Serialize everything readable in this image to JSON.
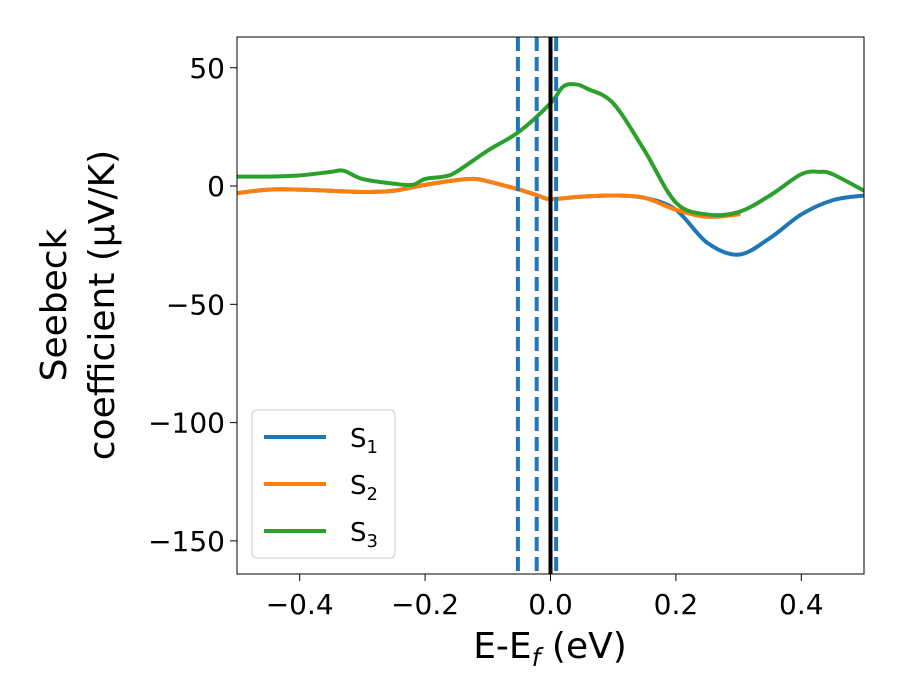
{
  "chart_data": {
    "type": "line",
    "xlabel": "E-E",
    "xlabel_sub": "f",
    "xlabel_unit": " (eV)",
    "ylabel_line1": "Seebeck",
    "ylabel_line2": "coefficient  (μV/K)",
    "xlim": [
      -0.5,
      0.5
    ],
    "ylim": [
      -164,
      63
    ],
    "xticks": [
      -0.4,
      -0.2,
      0.0,
      0.2,
      0.4
    ],
    "xtick_labels": [
      "−0.4",
      "−0.2",
      "0.0",
      "0.2",
      "0.4"
    ],
    "yticks": [
      50,
      0,
      -50,
      -100,
      -150
    ],
    "ytick_labels": [
      "50",
      "0",
      "−50",
      "−100",
      "−150"
    ],
    "legend_position": "lower-left",
    "series": [
      {
        "name": "S",
        "name_sub": "1",
        "color": "#1f77b4",
        "x": [
          -0.5,
          -0.45,
          -0.4,
          -0.35,
          -0.3,
          -0.25,
          -0.2,
          -0.15,
          -0.12,
          -0.1,
          -0.05,
          -0.02,
          0.0,
          0.05,
          0.1,
          0.15,
          0.2,
          0.25,
          0.3,
          0.35,
          0.4,
          0.45,
          0.5
        ],
        "y": [
          -3,
          -1.5,
          -1.5,
          -2,
          -2.5,
          -2,
          0.5,
          2.5,
          3,
          2,
          -1.5,
          -4,
          -5.5,
          -4.5,
          -4,
          -5,
          -10,
          -24,
          -29,
          -22,
          -12,
          -6,
          -4
        ]
      },
      {
        "name": "S",
        "name_sub": "2",
        "color": "#ff7f0e",
        "x": [
          -0.5,
          -0.45,
          -0.4,
          -0.35,
          -0.3,
          -0.25,
          -0.2,
          -0.15,
          -0.12,
          -0.1,
          -0.05,
          -0.02,
          0.0,
          0.05,
          0.1,
          0.15,
          0.2,
          0.25,
          0.3
        ],
        "y": [
          -3,
          -1.5,
          -1.5,
          -2,
          -2.5,
          -2,
          0.5,
          2.5,
          3,
          2,
          -1.5,
          -4,
          -5.5,
          -4.5,
          -4,
          -5,
          -10,
          -13,
          -12
        ]
      },
      {
        "name": "S",
        "name_sub": "3",
        "color": "#2ca02c",
        "x": [
          -0.5,
          -0.45,
          -0.4,
          -0.35,
          -0.33,
          -0.3,
          -0.25,
          -0.22,
          -0.2,
          -0.17,
          -0.15,
          -0.1,
          -0.05,
          0.0,
          0.02,
          0.04,
          0.06,
          0.1,
          0.15,
          0.2,
          0.25,
          0.3,
          0.35,
          0.4,
          0.43,
          0.45,
          0.5
        ],
        "y": [
          4,
          4,
          4.5,
          6,
          6.5,
          3,
          1,
          0.5,
          3,
          4,
          6,
          15,
          23,
          35,
          42,
          43,
          41,
          35,
          15,
          -7,
          -12,
          -11,
          -4,
          5,
          6,
          5,
          -2
        ]
      }
    ],
    "vlines": [
      {
        "x": -0.052,
        "style": "dashed",
        "color": "#1f77b4"
      },
      {
        "x": -0.022,
        "style": "dashed",
        "color": "#1f77b4"
      },
      {
        "x": 0.009,
        "style": "dashed",
        "color": "#1f77b4"
      },
      {
        "x": 0.0,
        "style": "solid",
        "color": "#000000"
      }
    ]
  }
}
